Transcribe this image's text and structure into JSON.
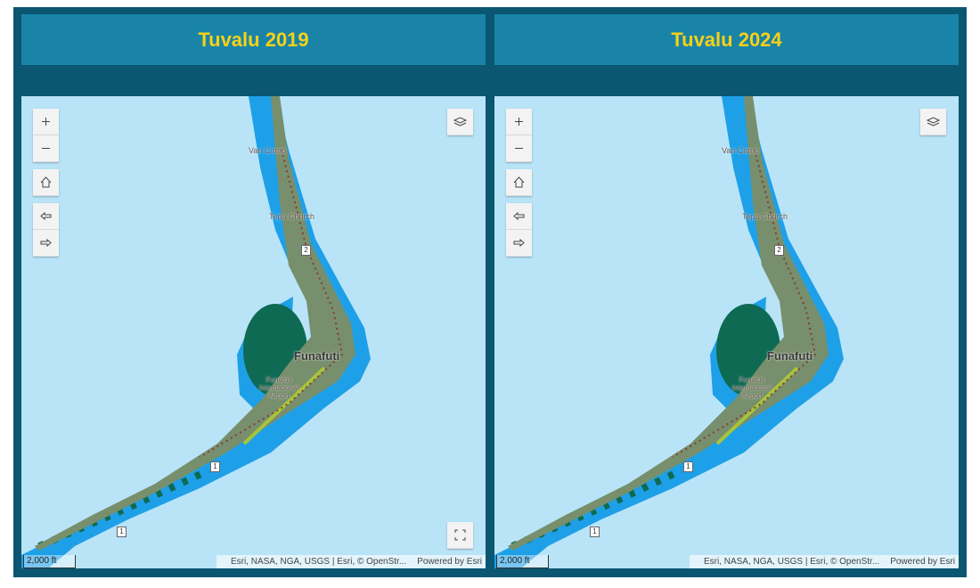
{
  "panels": [
    {
      "title": "Tuvalu 2019",
      "map": {
        "labels": [
          "Van Camp",
          "Tepa Church",
          "Funafuti",
          "Funafuti International Airport"
        ],
        "road_shields": [
          "2",
          "1",
          "1"
        ],
        "scale": "2,000 ft",
        "attribution": "Esri, NASA, NGA, USGS | Esri, © OpenStr...",
        "powered_by": "Powered by Esri"
      }
    },
    {
      "title": "Tuvalu 2024",
      "map": {
        "labels": [
          "Van Camp",
          "Tepa Church",
          "Funafuti",
          "Funafuti International Airport"
        ],
        "road_shields": [
          "2",
          "1",
          "1"
        ],
        "scale": "2,000 ft",
        "attribution": "Esri, NASA, NGA, USGS | Esri, © OpenStr...",
        "powered_by": "Powered by Esri"
      }
    }
  ]
}
